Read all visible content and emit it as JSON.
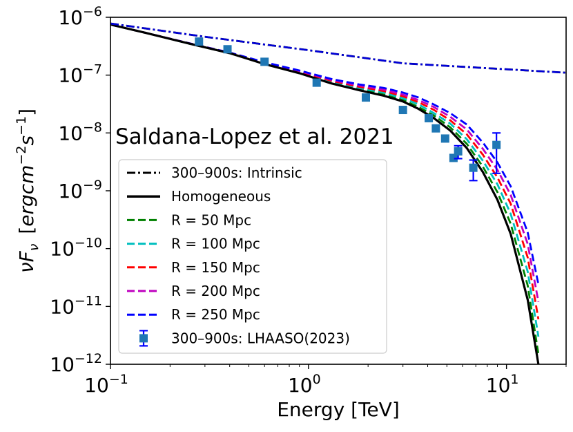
{
  "chart_data": {
    "type": "line",
    "annotation": "Saldana-Lopez et al. 2021",
    "xlabel": "Energy [TeV]",
    "ylabel": {
      "prefix": "νF",
      "sub": "ν",
      "bracket_open": "[",
      "units": "ergcm",
      "exp1": "−2",
      "s": "s",
      "exp2": "−1",
      "bracket_close": "]"
    },
    "xscale": "log",
    "yscale": "log",
    "xlim": [
      0.1,
      20
    ],
    "ylim": [
      1e-12,
      1e-06
    ],
    "x_ticks": [
      {
        "value": 0.1,
        "base": "10",
        "exp": "−1"
      },
      {
        "value": 1,
        "base": "10",
        "exp": "0"
      },
      {
        "value": 10,
        "base": "10",
        "exp": "1"
      }
    ],
    "y_ticks": [
      {
        "value": 1e-12,
        "base": "10",
        "exp": "−12"
      },
      {
        "value": 1e-11,
        "base": "10",
        "exp": "−11"
      },
      {
        "value": 1e-10,
        "base": "10",
        "exp": "−10"
      },
      {
        "value": 1e-09,
        "base": "10",
        "exp": "−9"
      },
      {
        "value": 1e-08,
        "base": "10",
        "exp": "−8"
      },
      {
        "value": 1e-07,
        "base": "10",
        "exp": "−7"
      },
      {
        "value": 1e-06,
        "base": "10",
        "exp": "−6"
      }
    ],
    "legend_position": "lower-left",
    "grid": false,
    "series": [
      {
        "name": "300–900s: Intrinsic",
        "style": "dashdot",
        "color": "#000000",
        "shared_x": "x_intrinsic",
        "values": [
          7.8e-07,
          4.6e-07,
          2.7e-07,
          1.6e-07,
          1.1e-07
        ]
      },
      {
        "name": "Homogeneous",
        "style": "solid",
        "color": "#000000",
        "shared_x": "x_absorbed",
        "values": [
          7.5e-07,
          5.4e-07,
          3.5e-07,
          2.4e-07,
          1.55e-07,
          1.08e-07,
          7.2e-08,
          5.5e-08,
          4.4e-08,
          3.5e-08,
          2.6e-08,
          1.8e-08,
          1.1e-08,
          5.5e-09,
          2.1e-09,
          7e-10,
          1.8e-10,
          1.3e-11,
          1e-12
        ]
      },
      {
        "name": "R = 50 Mpc",
        "style": "dashed",
        "color": "#008000",
        "shared_x": "x_absorbed",
        "values": [
          7.5e-07,
          5.4e-07,
          3.5e-07,
          2.4e-07,
          1.57e-07,
          1.1e-07,
          7.4e-08,
          5.7e-08,
          4.6e-08,
          3.7e-08,
          2.8e-08,
          2e-08,
          1.25e-08,
          6.5e-09,
          2.6e-09,
          9.5e-10,
          2.7e-10,
          2.3e-11,
          1.5e-12
        ]
      },
      {
        "name": "R = 100 Mpc",
        "style": "dashed",
        "color": "#00bfbf",
        "shared_x": "x_absorbed",
        "values": [
          7.5e-07,
          5.4e-07,
          3.5e-07,
          2.4e-07,
          1.6e-07,
          1.13e-07,
          7.7e-08,
          6e-08,
          5e-08,
          4e-08,
          3.1e-08,
          2.2e-08,
          1.45e-08,
          7.8e-09,
          3.3e-09,
          1.3e-09,
          4e-10,
          4e-11,
          3e-12
        ]
      },
      {
        "name": "R = 150 Mpc",
        "style": "dashed",
        "color": "#ff0000",
        "shared_x": "x_absorbed",
        "values": [
          7.5e-07,
          5.4e-07,
          3.55e-07,
          2.45e-07,
          1.62e-07,
          1.15e-07,
          8e-08,
          6.3e-08,
          5.3e-08,
          4.3e-08,
          3.4e-08,
          2.5e-08,
          1.65e-08,
          9.5e-09,
          4.2e-09,
          1.7e-09,
          6e-10,
          7e-11,
          6e-12
        ]
      },
      {
        "name": "R = 200 Mpc",
        "style": "dashed",
        "color": "#bf00bf",
        "shared_x": "x_absorbed",
        "values": [
          7.5e-07,
          5.4e-07,
          3.55e-07,
          2.45e-07,
          1.65e-07,
          1.18e-07,
          8.3e-08,
          6.6e-08,
          5.6e-08,
          4.6e-08,
          3.7e-08,
          2.8e-08,
          1.9e-08,
          1.15e-08,
          5.3e-09,
          2.3e-09,
          8.5e-10,
          1.2e-10,
          1.2e-11
        ]
      },
      {
        "name": "R = 250 Mpc",
        "style": "dashed",
        "color": "#0000ff",
        "shared_x": "x_absorbed",
        "values": [
          7.5e-07,
          5.4e-07,
          3.55e-07,
          2.45e-07,
          1.67e-07,
          1.2e-07,
          8.6e-08,
          6.9e-08,
          6e-08,
          5e-08,
          4.1e-08,
          3.1e-08,
          2.2e-08,
          1.4e-08,
          6.8e-09,
          3.1e-09,
          1.2e-09,
          1.9e-10,
          2.4e-11
        ]
      }
    ],
    "x_intrinsic": [
      0.1,
      0.3,
      1,
      3,
      20
    ],
    "x_absorbed": [
      0.1,
      0.15,
      0.25,
      0.4,
      0.6,
      0.9,
      1.3,
      1.8,
      2.4,
      3.0,
      3.6,
      4.3,
      5.2,
      6.3,
      7.6,
      9.0,
      10.5,
      12.8,
      14.5
    ],
    "data_points": {
      "name": "300–900s: LHAASO(2023)",
      "color": "#1f77b4",
      "errorbar_color": "#0000ff",
      "points": [
        {
          "x": 0.28,
          "y": 3.8e-07
        },
        {
          "x": 0.39,
          "y": 2.8e-07
        },
        {
          "x": 0.6,
          "y": 1.7e-07
        },
        {
          "x": 1.1,
          "y": 7.4e-08
        },
        {
          "x": 1.95,
          "y": 4.1e-08
        },
        {
          "x": 3.0,
          "y": 2.5e-08
        },
        {
          "x": 4.05,
          "y": 1.8e-08
        },
        {
          "x": 4.4,
          "y": 1.2e-08
        },
        {
          "x": 4.9,
          "y": 8e-09
        },
        {
          "x": 5.4,
          "y": 3.7e-09
        },
        {
          "x": 5.7,
          "y": 4.8e-09,
          "ylo": 3.6e-09,
          "yhi": 6e-09
        },
        {
          "x": 6.8,
          "y": 2.5e-09,
          "ylo": 1.5e-09,
          "yhi": 3.4e-09
        },
        {
          "x": 8.9,
          "y": 6.2e-09,
          "ylo": 2e-09,
          "yhi": 1e-08
        }
      ]
    }
  }
}
